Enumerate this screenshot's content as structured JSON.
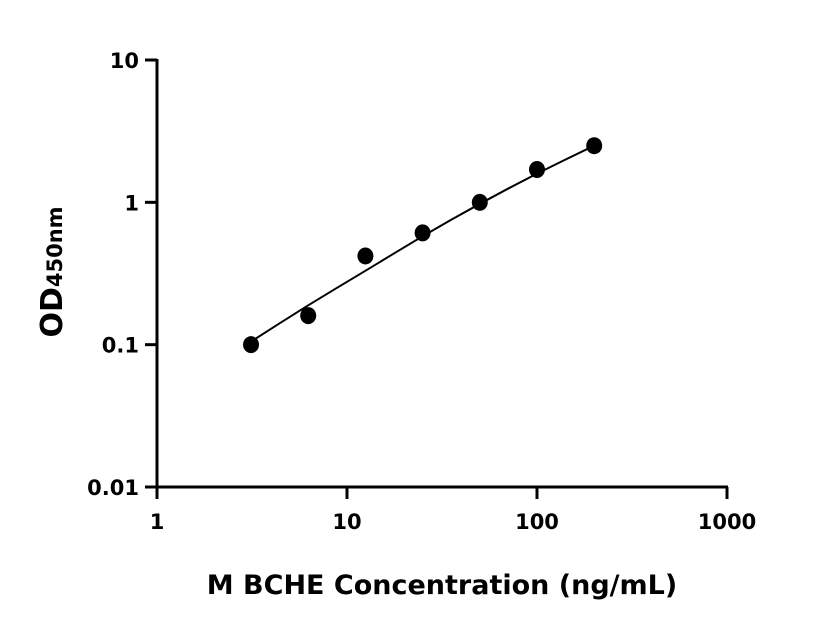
{
  "chart_data": {
    "type": "scatter",
    "title": "",
    "xlabel": "M BCHE Concentration (ng/mL)",
    "ylabel": "OD",
    "ylabel_subscript": "450nm",
    "xscale": "log",
    "yscale": "log",
    "xlim": [
      1,
      1000
    ],
    "ylim": [
      0.01,
      10
    ],
    "x_ticks": [
      1,
      10,
      100,
      1000
    ],
    "x_tick_labels": [
      "1",
      "10",
      "100",
      "1000"
    ],
    "y_ticks": [
      0.01,
      0.1,
      1,
      10
    ],
    "y_tick_labels": [
      "0.01",
      "0.1",
      "1",
      "10"
    ],
    "grid": false,
    "series": [
      {
        "x": [
          3.125,
          6.25,
          12.5,
          25,
          50,
          100,
          200
        ],
        "y": [
          0.1,
          0.16,
          0.42,
          0.61,
          1.0,
          1.7,
          2.5
        ],
        "marker": "circle",
        "color": "#000000",
        "fit_curve": {
          "x": [
            3.125,
            6.25,
            12.5,
            25,
            50,
            100,
            200
          ],
          "y": [
            0.105,
            0.19,
            0.33,
            0.58,
            0.98,
            1.6,
            2.5
          ]
        }
      }
    ]
  }
}
